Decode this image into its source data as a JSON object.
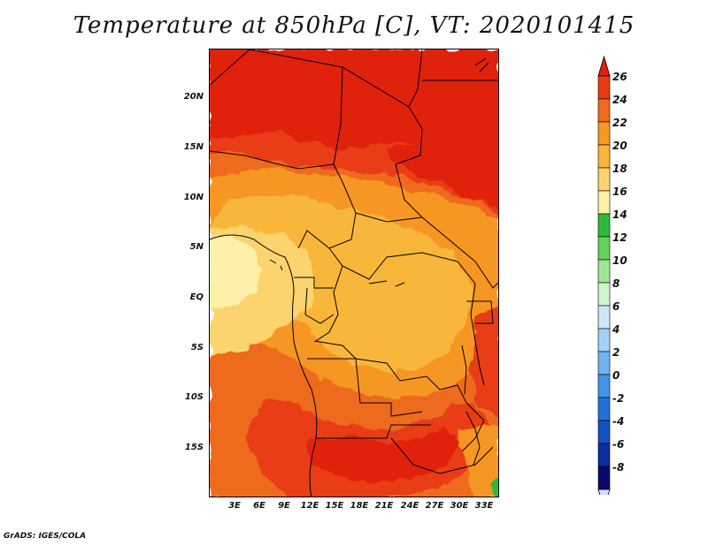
{
  "title": "Temperature at 850hPa [C], VT: 2020101415",
  "credit": "GrADS: IGES/COLA",
  "latitude_labels": [
    "20N",
    "15N",
    "10N",
    "5N",
    "EQ",
    "5S",
    "10S",
    "15S"
  ],
  "longitude_labels": [
    "3E",
    "6E",
    "9E",
    "12E",
    "15E",
    "18E",
    "21E",
    "24E",
    "27E",
    "30E",
    "33E"
  ],
  "colorbar": {
    "labels": [
      "26",
      "24",
      "22",
      "20",
      "18",
      "16",
      "14",
      "12",
      "10",
      "8",
      "6",
      "4",
      "2",
      "0",
      "-2",
      "-4",
      "-6",
      "-8"
    ],
    "colors": [
      "#e02010",
      "#e83c14",
      "#ee6a1c",
      "#f59722",
      "#f8b63a",
      "#fbd46e",
      "#fdf0a8",
      "#2fb93a",
      "#63d15a",
      "#9ee595",
      "#d0f5d0",
      "#cce6fa",
      "#a3d0f5",
      "#72b3ef",
      "#4393e8",
      "#2271d9",
      "#1650c4",
      "#0c2e9e",
      "#0a0a6a"
    ],
    "over_color": "#e02010",
    "under_color": "#d8d8ff"
  }
}
